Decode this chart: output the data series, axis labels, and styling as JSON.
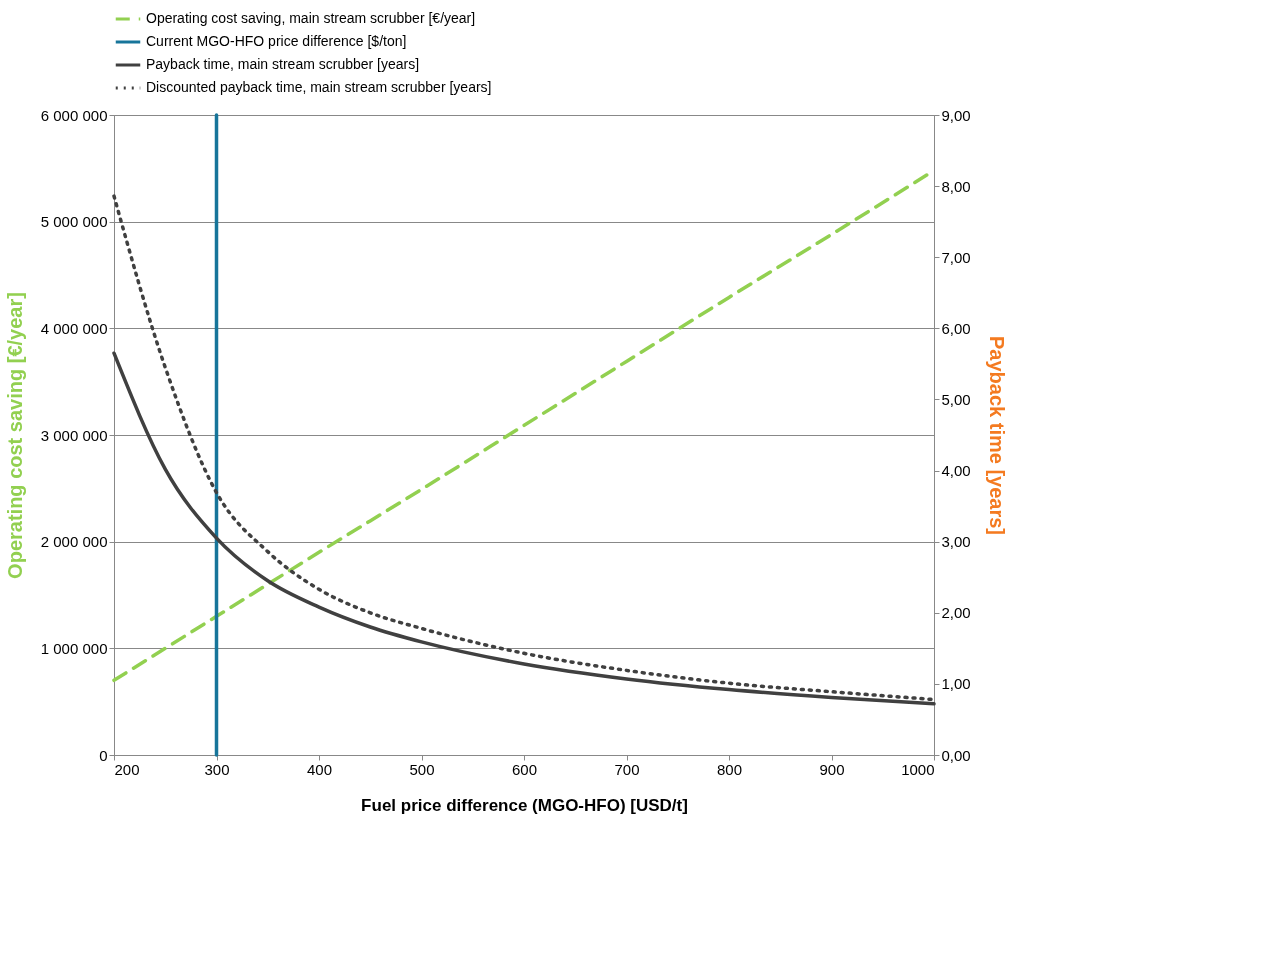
{
  "chart_data": {
    "type": "line",
    "xlabel": "Fuel price difference (MGO-HFO) [USD/t]",
    "ylabel": "Operating cost saving [€/year]",
    "y2label": "Payback time [years]",
    "xlim": [
      200,
      1000
    ],
    "xticks": [
      200,
      300,
      400,
      500,
      600,
      700,
      800,
      900,
      1000
    ],
    "ylim": [
      0,
      6000000
    ],
    "yticks": [
      0,
      {
        "value": 1000000,
        "label": "1 000 000"
      },
      {
        "value": 2000000,
        "label": "2 000 000"
      },
      {
        "value": 3000000,
        "label": "3 000 000"
      },
      {
        "value": 4000000,
        "label": "4 000 000"
      },
      {
        "value": 5000000,
        "label": "5 000 000"
      },
      {
        "value": 6000000,
        "label": "6 000 000"
      }
    ],
    "y2lim": [
      0,
      9
    ],
    "y2ticks": [
      {
        "value": 0,
        "label": "0,00"
      },
      {
        "value": 1,
        "label": "1,00"
      },
      {
        "value": 2,
        "label": "2,00"
      },
      {
        "value": 3,
        "label": "3,00"
      },
      {
        "value": 4,
        "label": "4,00"
      },
      {
        "value": 5,
        "label": "5,00"
      },
      {
        "value": 6,
        "label": "6,00"
      },
      {
        "value": 7,
        "label": "7,00"
      },
      {
        "value": 8,
        "label": "8,00"
      },
      {
        "value": 9,
        "label": "9,00"
      }
    ],
    "grid": "y",
    "legend": "top",
    "series": [
      {
        "name": "Operating cost saving, main stream scrubber [€/year]",
        "color": "#92d050",
        "line_style": "dashed",
        "x": [
          200,
          300,
          400,
          500,
          600,
          700,
          800,
          900,
          1000
        ],
        "values": [
          700000,
          1300000,
          1900000,
          2490000,
          3090000,
          3690000,
          4290000,
          4880000,
          5480000
        ]
      },
      {
        "name": "Current MGO-HFO price difference [$/ton]",
        "color": "#17759a",
        "line_style": "solid",
        "x": [
          300,
          300
        ],
        "values": [
          0,
          6000000
        ]
      },
      {
        "name": "Payback time, main stream scrubber [years]",
        "color": "#404040",
        "line_style": "solid",
        "axis": "y2",
        "x": [
          200,
          250,
          300,
          350,
          400,
          450,
          500,
          600,
          700,
          800,
          900,
          1000
        ],
        "values": [
          5.65,
          4.02,
          3.05,
          2.45,
          2.08,
          1.8,
          1.59,
          1.28,
          1.07,
          0.92,
          0.81,
          0.72
        ]
      },
      {
        "name": "Discounted payback time, main stream scrubber [years]",
        "color": "#404040",
        "line_style": "dotted",
        "axis": "y2",
        "x": [
          200,
          250,
          300,
          350,
          400,
          450,
          500,
          600,
          700,
          800,
          900,
          1000
        ],
        "values": [
          7.86,
          5.45,
          3.69,
          2.86,
          2.33,
          2.0,
          1.78,
          1.43,
          1.19,
          1.01,
          0.89,
          0.78
        ]
      }
    ]
  }
}
